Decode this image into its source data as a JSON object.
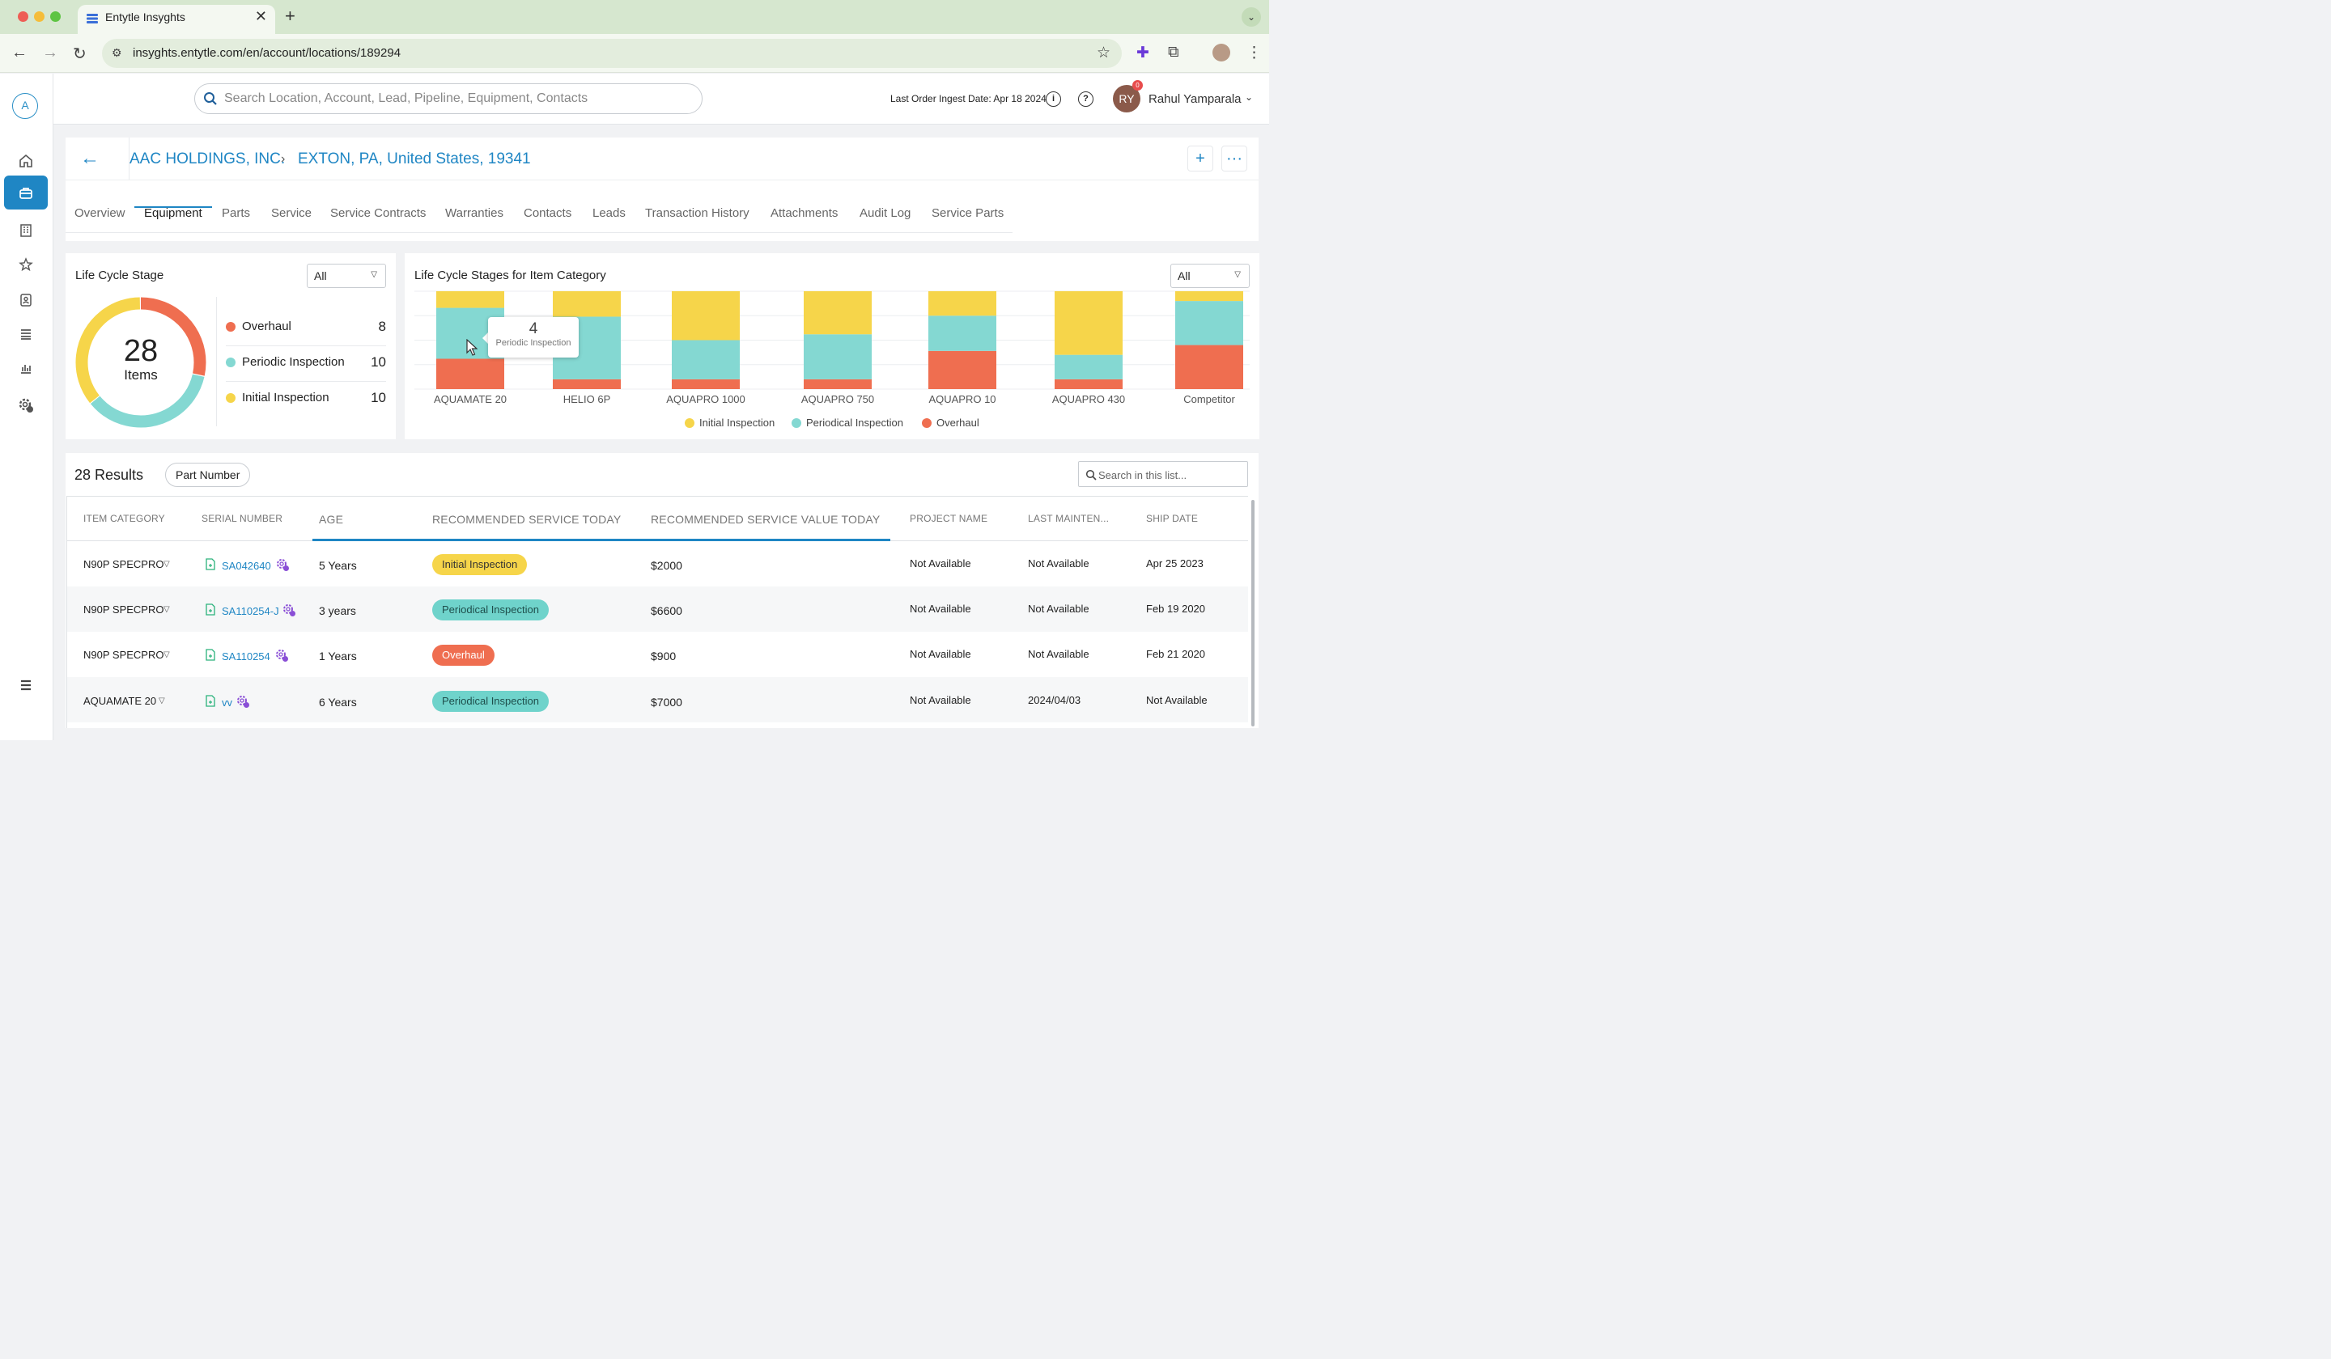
{
  "browser": {
    "tab_title": "Entytle Insyghts",
    "tab_close": "✕",
    "new_tab": "+",
    "url": "insyghts.entytle.com/en/account/locations/189294"
  },
  "header": {
    "search_placeholder": "Search Location, Account, Lead, Pipeline, Equipment, Contacts",
    "ingest_label": "Last Order Ingest Date: Apr 18 2024",
    "user_initials": "RY",
    "notification_count": "0",
    "user_name": "Rahul Yamparala"
  },
  "sidebar": {
    "logo": "A",
    "items": [
      "home-icon",
      "briefcase-icon",
      "building-icon",
      "star-icon",
      "contact-book-icon",
      "list-icon",
      "bar-chart-icon",
      "gear-icon"
    ],
    "active_index": 1
  },
  "breadcrumb": {
    "account": "AAC HOLDINGS, INC.",
    "separator": "›",
    "location": "EXTON, PA, United States, 19341"
  },
  "tabs": [
    "Overview",
    "Equipment",
    "Parts",
    "Service",
    "Service Contracts",
    "Warranties",
    "Contacts",
    "Leads",
    "Transaction History",
    "Attachments",
    "Audit Log",
    "Service Parts"
  ],
  "active_tab": "Equipment",
  "life_cycle": {
    "title": "Life Cycle Stage",
    "filter": "All",
    "total": "28",
    "total_label": "Items",
    "stages": [
      {
        "name": "Overhaul",
        "count": "8",
        "color": "#ef6e50"
      },
      {
        "name": "Periodic Inspection",
        "count": "10",
        "color": "#84d8d2"
      },
      {
        "name": "Initial Inspection",
        "count": "10",
        "color": "#f6d54a"
      }
    ]
  },
  "category_chart": {
    "title": "Life Cycle Stages for Item Category",
    "filter": "All",
    "tooltip_value": "4",
    "tooltip_label": "Periodic Inspection"
  },
  "chart_data": {
    "type": "bar",
    "stacked": true,
    "normalized": true,
    "categories": [
      "AQUAMATE 20",
      "HELIO 6P",
      "AQUAPRO 1000",
      "AQUAPRO 750",
      "AQUAPRO 10",
      "AQUAPRO 430",
      "Competitor"
    ],
    "series": [
      {
        "name": "Overhaul",
        "color": "#ef6e50",
        "values": [
          0.31,
          0.1,
          0.1,
          0.1,
          0.39,
          0.1,
          0.45
        ]
      },
      {
        "name": "Periodical Inspection",
        "color": "#84d8d2",
        "values": [
          0.52,
          0.64,
          0.4,
          0.46,
          0.36,
          0.25,
          0.45
        ]
      },
      {
        "name": "Initial Inspection",
        "color": "#f6d54a",
        "values": [
          0.17,
          0.26,
          0.5,
          0.44,
          0.25,
          0.65,
          0.1
        ]
      }
    ],
    "legend_order": [
      "Initial Inspection",
      "Periodical Inspection",
      "Overhaul"
    ],
    "legend": "bottom",
    "grid": true
  },
  "results": {
    "count_label": "28 Results",
    "chip": "Part Number",
    "search_placeholder": "Search in this list...",
    "columns": [
      "ITEM CATEGORY",
      "SERIAL NUMBER",
      "AGE",
      "RECOMMENDED SERVICE TODAY",
      "RECOMMENDED SERVICE VALUE TODAY",
      "PROJECT NAME",
      "LAST MAINTEN...",
      "SHIP DATE"
    ],
    "rows": [
      {
        "category": "N90P SPECPRO",
        "serial": "SA042640",
        "age": "5 Years",
        "service": "Initial Inspection",
        "value": "$2000",
        "project": "Not Available",
        "last": "Not Available",
        "ship": "Apr 25 2023"
      },
      {
        "category": "N90P SPECPRO",
        "serial": "SA110254-J",
        "age": "3 years",
        "service": "Periodical Inspection",
        "value": "$6600",
        "project": "Not Available",
        "last": "Not Available",
        "ship": "Feb 19 2020"
      },
      {
        "category": "N90P SPECPRO",
        "serial": "SA110254",
        "age": "1 Years",
        "service": "Overhaul",
        "value": "$900",
        "project": "Not Available",
        "last": "Not Available",
        "ship": "Feb 21 2020"
      },
      {
        "category": "AQUAMATE 20",
        "serial": "vv",
        "age": "6 Years",
        "service": "Periodical Inspection",
        "value": "$7000",
        "project": "Not Available",
        "last": "2024/04/03",
        "ship": "Not Available"
      }
    ]
  }
}
